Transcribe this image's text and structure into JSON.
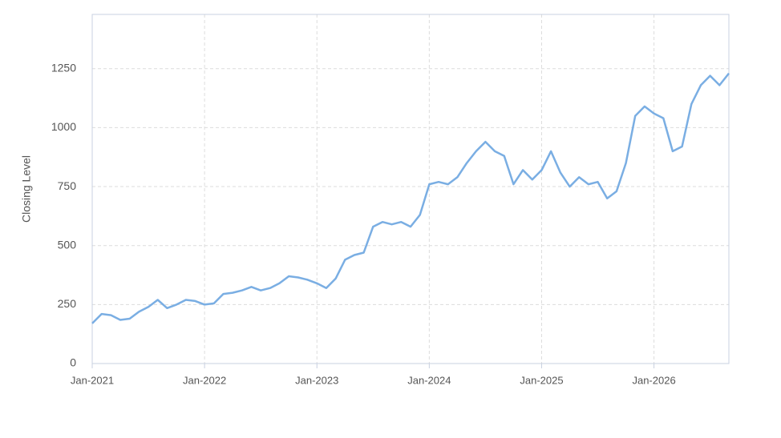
{
  "chart_data": {
    "type": "line",
    "y_label": "Closing Level",
    "x": [
      "2021-01",
      "2021-02",
      "2021-03",
      "2021-04",
      "2021-05",
      "2021-06",
      "2021-07",
      "2021-08",
      "2021-09",
      "2021-10",
      "2021-11",
      "2021-12",
      "2022-01",
      "2022-02",
      "2022-03",
      "2022-04",
      "2022-05",
      "2022-06",
      "2022-07",
      "2022-08",
      "2022-09",
      "2022-10",
      "2022-11",
      "2022-12",
      "2023-01",
      "2023-02",
      "2023-03",
      "2023-04",
      "2023-05",
      "2023-06",
      "2023-07",
      "2023-08",
      "2023-09",
      "2023-10",
      "2023-11",
      "2023-12",
      "2024-01",
      "2024-02",
      "2024-03",
      "2024-04",
      "2024-05",
      "2024-06",
      "2024-07",
      "2024-08",
      "2024-09",
      "2024-10",
      "2024-11",
      "2024-12",
      "2025-01",
      "2025-02",
      "2025-03",
      "2025-04",
      "2025-05",
      "2025-06",
      "2025-07",
      "2025-08",
      "2025-09",
      "2025-10",
      "2025-11",
      "2025-12",
      "2026-01",
      "2026-02",
      "2026-03",
      "2026-04",
      "2026-05",
      "2026-06",
      "2026-07",
      "2026-08",
      "2026-09"
    ],
    "series": [
      {
        "name": "Closing Level",
        "color": "#7aaee3",
        "values": [
          170,
          210,
          205,
          185,
          190,
          220,
          240,
          270,
          235,
          250,
          270,
          265,
          250,
          255,
          295,
          300,
          310,
          325,
          310,
          320,
          340,
          370,
          365,
          355,
          340,
          320,
          360,
          440,
          460,
          470,
          580,
          600,
          590,
          600,
          580,
          630,
          760,
          770,
          760,
          790,
          850,
          900,
          940,
          900,
          880,
          760,
          820,
          780,
          820,
          900,
          810,
          750,
          790,
          760,
          770,
          700,
          730,
          850,
          1050,
          1090,
          1060,
          1040,
          900,
          920,
          1100,
          1180,
          1220,
          1180,
          1230
        ]
      }
    ],
    "xlim": [
      "2021-01",
      "2026-09"
    ],
    "xticks": [
      {
        "value": "2021-01",
        "label": "Jan-2021"
      },
      {
        "value": "2022-01",
        "label": "Jan-2022"
      },
      {
        "value": "2023-01",
        "label": "Jan-2023"
      },
      {
        "value": "2024-01",
        "label": "Jan-2024"
      },
      {
        "value": "2025-01",
        "label": "Jan-2025"
      },
      {
        "value": "2026-01",
        "label": "Jan-2026"
      }
    ],
    "ylim": [
      0,
      1480
    ],
    "yticks": [
      0,
      250,
      500,
      750,
      1000,
      1250
    ],
    "grid": true
  }
}
